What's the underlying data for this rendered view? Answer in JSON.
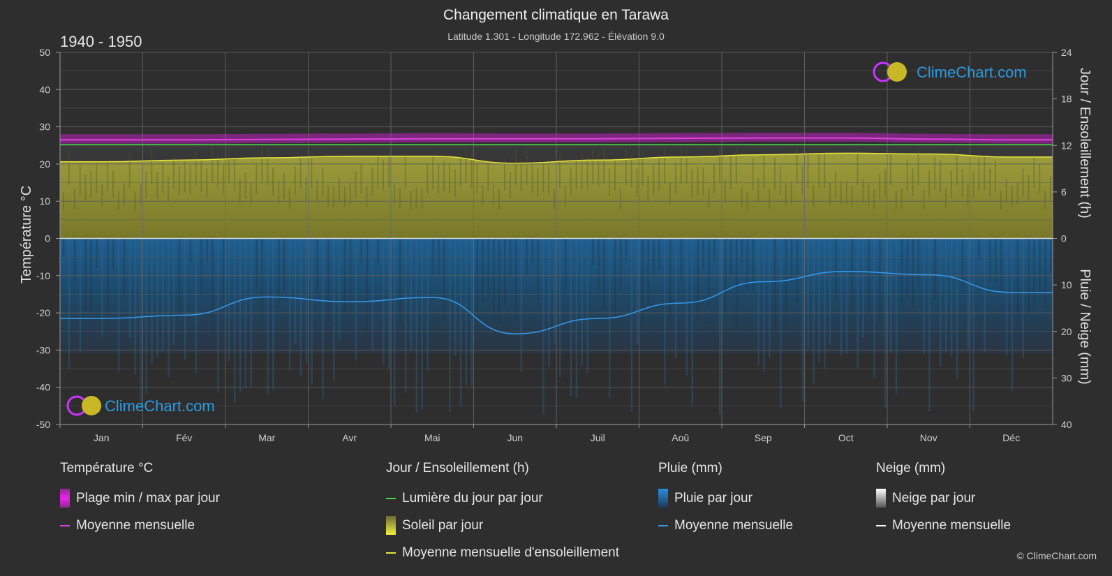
{
  "header": {
    "title": "Changement climatique en Tarawa",
    "subtitle": "Latitude 1.301 - Longitude 172.962 - Élévation 9.0",
    "period": "1940 - 1950"
  },
  "axes": {
    "left_label": "Température °C",
    "right_top_label": "Jour / Ensoleillement (h)",
    "right_bottom_label": "Pluie / Neige (mm)",
    "left_ticks": [
      "50",
      "40",
      "30",
      "20",
      "10",
      "0",
      "-10",
      "-20",
      "-30",
      "-40",
      "-50"
    ],
    "right_top_ticks": [
      "24",
      "18",
      "12",
      "6",
      "0"
    ],
    "right_bottom_ticks": [
      "10",
      "20",
      "30",
      "40"
    ]
  },
  "watermark": {
    "brand": "ClimeChart.com"
  },
  "chart_data": {
    "type": "area",
    "months": [
      "Jan",
      "Fév",
      "Mar",
      "Avr",
      "Mai",
      "Jun",
      "Juil",
      "Aoû",
      "Sep",
      "Oct",
      "Nov",
      "Déc"
    ],
    "temperature_range": {
      "ylim": [
        -50,
        50
      ]
    },
    "sun_range": {
      "ylim": [
        0,
        24
      ]
    },
    "precip_range": {
      "ylim": [
        0,
        40
      ]
    },
    "series": [
      {
        "name": "Moyenne mensuelle",
        "unit": "°C",
        "color": "#e040e0",
        "values": [
          26.5,
          26.5,
          26.6,
          26.7,
          26.8,
          26.8,
          26.8,
          26.9,
          27.0,
          27.0,
          26.7,
          26.5
        ]
      },
      {
        "name": "Plage min / max par jour",
        "unit": "°C",
        "color": "#c020c0",
        "min": [
          25.5,
          25.5,
          25.6,
          25.7,
          25.8,
          25.8,
          25.8,
          25.9,
          26.0,
          26.0,
          25.7,
          25.5
        ],
        "max": [
          28.0,
          28.0,
          28.1,
          28.2,
          28.3,
          28.2,
          28.2,
          28.3,
          28.4,
          28.4,
          28.1,
          28.0
        ]
      },
      {
        "name": "Lumière du jour par jour",
        "unit": "h",
        "color": "#44dd44",
        "values": [
          12.1,
          12.1,
          12.1,
          12.1,
          12.1,
          12.1,
          12.1,
          12.1,
          12.1,
          12.1,
          12.1,
          12.1
        ]
      },
      {
        "name": "Moyenne mensuelle d'ensoleillement",
        "unit": "h",
        "color": "#e6e63a",
        "values": [
          9.9,
          10.1,
          10.4,
          10.6,
          10.6,
          9.7,
          10.1,
          10.5,
          10.8,
          11.0,
          10.9,
          10.5
        ]
      },
      {
        "name": "Pluie moyenne mensuelle",
        "unit": "mm",
        "color": "#3399ee",
        "values": [
          17.2,
          16.5,
          12.6,
          13.6,
          12.7,
          20.5,
          17.2,
          13.9,
          9.3,
          7.1,
          7.8,
          11.6
        ]
      }
    ]
  },
  "legend": {
    "temperature": {
      "title": "Température °C",
      "range": "Plage min / max par jour",
      "mean": "Moyenne mensuelle"
    },
    "sun": {
      "title": "Jour / Ensoleillement (h)",
      "daylight": "Lumière du jour par jour",
      "sun": "Soleil par jour",
      "mean": "Moyenne mensuelle d'ensoleillement"
    },
    "rain": {
      "title": "Pluie (mm)",
      "daily": "Pluie par jour",
      "mean": "Moyenne mensuelle"
    },
    "snow": {
      "title": "Neige (mm)",
      "daily": "Neige par jour",
      "mean": "Moyenne mensuelle"
    }
  },
  "footer": {
    "copyright": "© ClimeChart.com"
  },
  "colors": {
    "background": "#2e2e2e",
    "temp_range": "#c020c0",
    "temp_mean": "#e040e0",
    "daylight": "#44dd44",
    "sun_fill": "#8f8f30",
    "sun_mean": "#e6e63a",
    "rain_fill": "#1f5f8f",
    "rain_mean": "#3399ee",
    "snow_mean": "#ffffff",
    "brand": "#2a9be0"
  }
}
